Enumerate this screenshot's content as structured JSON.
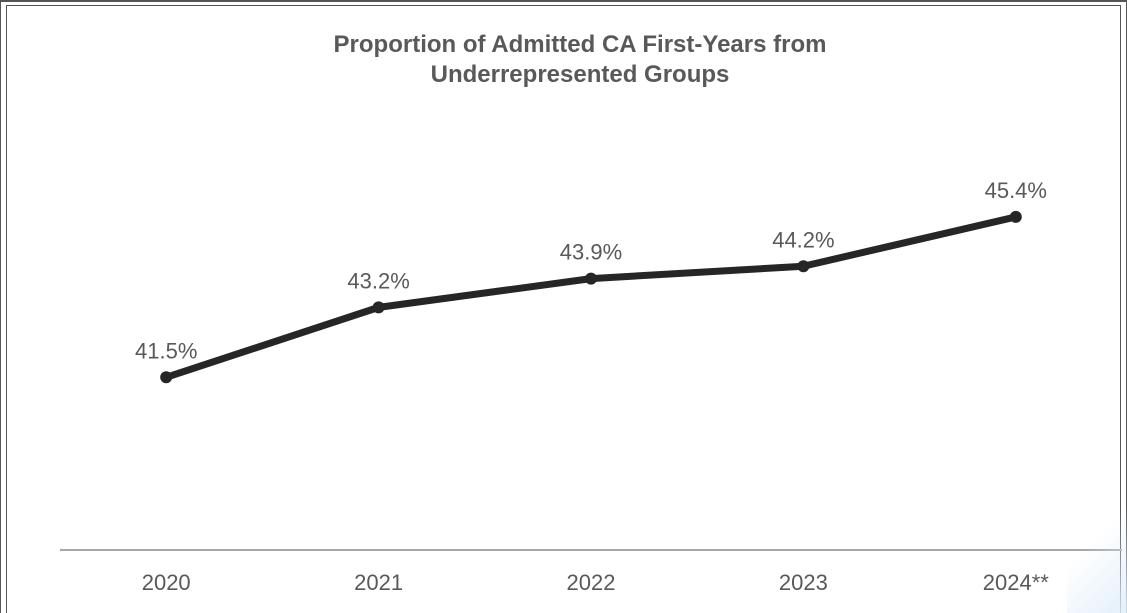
{
  "chart_data": {
    "type": "line",
    "title_lines": [
      "Proportion of Admitted CA First-Years from",
      "Underrepresented Groups"
    ],
    "categories": [
      "2020",
      "2021",
      "2022",
      "2023",
      "2024**"
    ],
    "series": [
      {
        "values": [
          41.5,
          43.2,
          43.9,
          44.2,
          45.4
        ],
        "labels": [
          "41.5%",
          "43.2%",
          "43.9%",
          "44.2%",
          "45.4%"
        ],
        "color": "#262626"
      }
    ],
    "ylim": [
      37.3,
      48.0
    ],
    "grid": false,
    "legend": "none",
    "axis_color": "#a6a6a6",
    "text_color": "#595959"
  }
}
